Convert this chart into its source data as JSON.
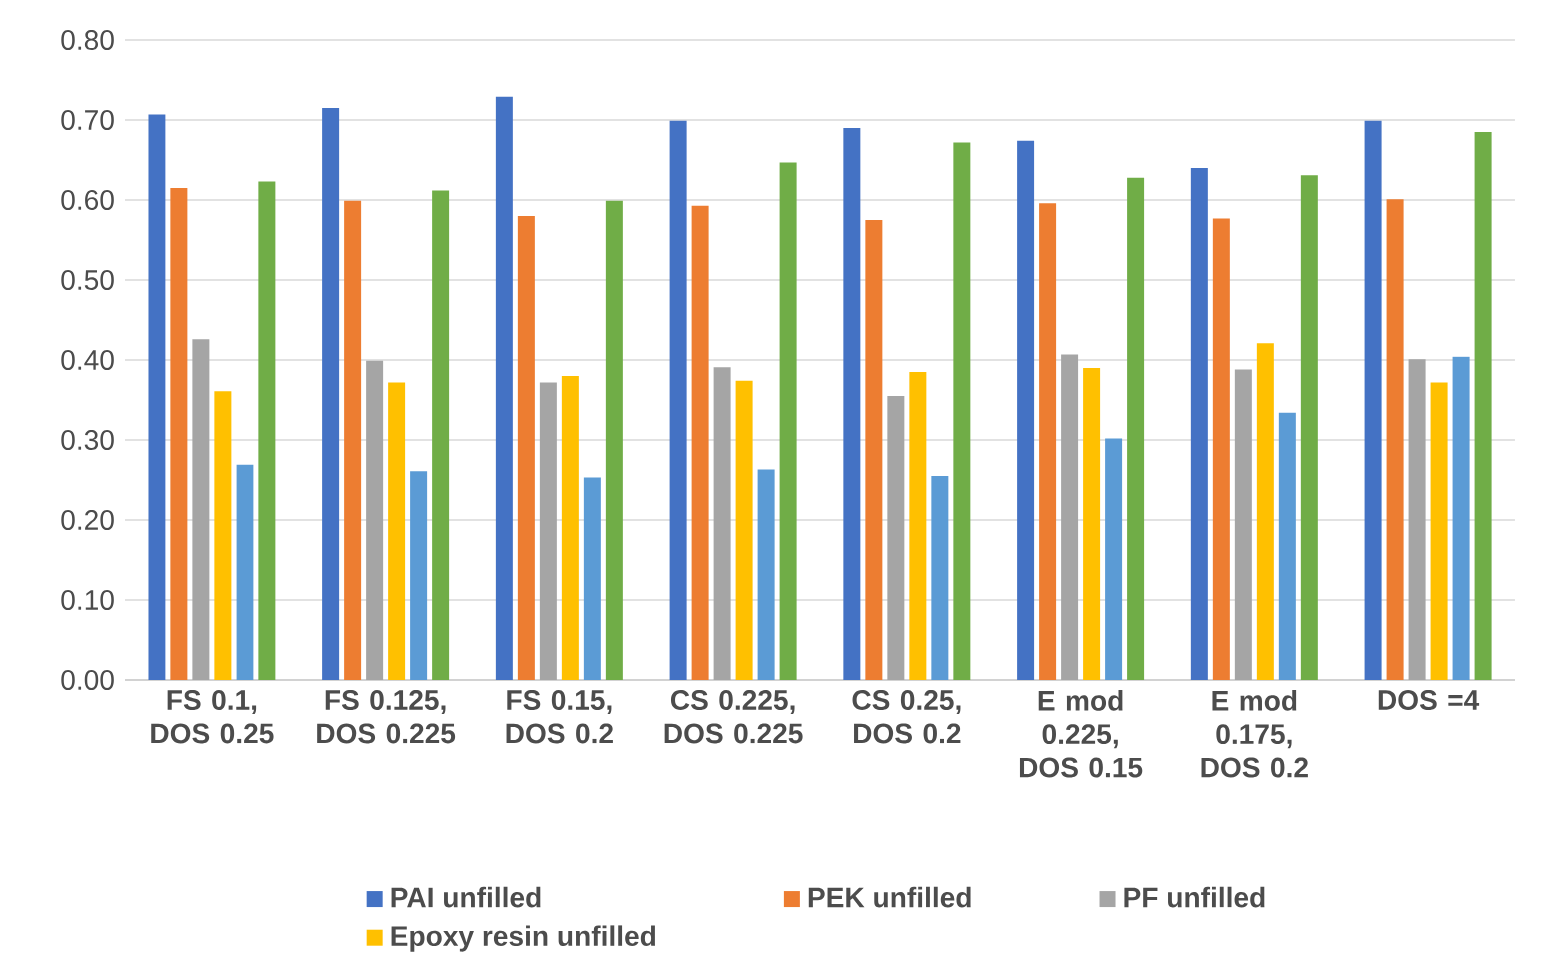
{
  "chart_data": {
    "type": "bar",
    "categories": [
      "FS 0.1, DOS 0.25",
      "FS 0.125, DOS 0.225",
      "FS 0.15, DOS 0.2",
      "CS 0.225, DOS 0.225",
      "CS 0.25, DOS 0.2",
      "E mod 0.225, DOS 0.15",
      "E mod 0.175, DOS 0.2",
      "DOS =4"
    ],
    "series": [
      {
        "name": "PAI unfilled",
        "color": "#4472c4",
        "values": [
          0.707,
          0.715,
          0.729,
          0.699,
          0.69,
          0.674,
          0.64,
          0.699
        ]
      },
      {
        "name": "PEK unfilled",
        "color": "#ed7d31",
        "values": [
          0.615,
          0.599,
          0.58,
          0.593,
          0.575,
          0.596,
          0.577,
          0.601
        ]
      },
      {
        "name": "PF unfilled",
        "color": "#a5a5a5",
        "values": [
          0.426,
          0.399,
          0.372,
          0.391,
          0.355,
          0.407,
          0.388,
          0.401
        ]
      },
      {
        "name": "Epoxy resin unfilled",
        "color": "#ffc000",
        "values": [
          0.361,
          0.372,
          0.38,
          0.374,
          0.385,
          0.39,
          0.421,
          0.372
        ]
      },
      {
        "color": "#5b9bd5",
        "values": [
          0.269,
          0.261,
          0.253,
          0.263,
          0.255,
          0.302,
          0.334,
          0.404
        ]
      },
      {
        "color": "#70ad47",
        "values": [
          0.623,
          0.612,
          0.599,
          0.647,
          0.672,
          0.628,
          0.631,
          0.685
        ]
      }
    ],
    "ylim": [
      0,
      0.8
    ],
    "yticks": [
      {
        "value": 0,
        "label": "0.00"
      },
      {
        "value": 0.1,
        "label": "0.10"
      },
      {
        "value": 0.2,
        "label": "0.20"
      },
      {
        "value": 0.3,
        "label": "0.30"
      },
      {
        "value": 0.4,
        "label": "0.40"
      },
      {
        "value": 0.5,
        "label": "0.50"
      },
      {
        "value": 0.6,
        "label": "0.60"
      },
      {
        "value": 0.7,
        "label": "0.70"
      },
      {
        "value": 0.8,
        "label": "0.80"
      }
    ],
    "grid": "y",
    "legend": "bottom"
  }
}
